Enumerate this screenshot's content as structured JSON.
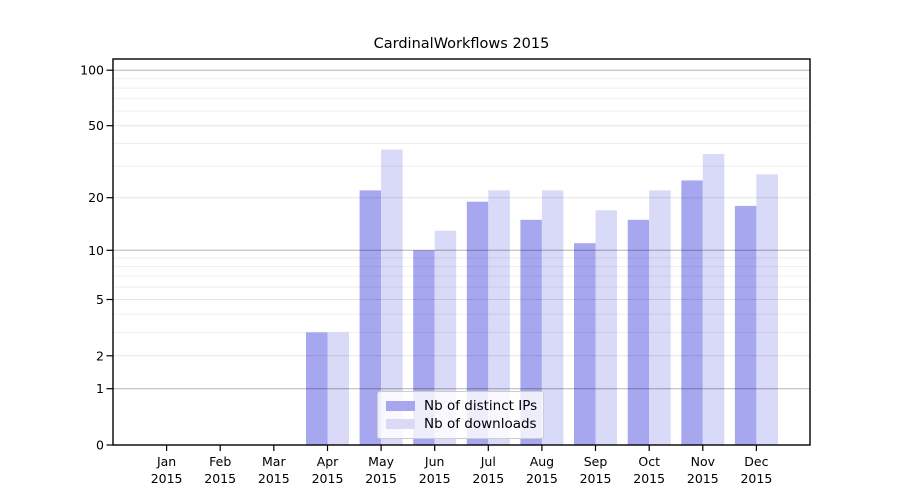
{
  "chart_data": {
    "type": "bar",
    "title": "CardinalWorkflows 2015",
    "categories": [
      "Jan",
      "Feb",
      "Mar",
      "Apr",
      "May",
      "Jun",
      "Jul",
      "Aug",
      "Sep",
      "Oct",
      "Nov",
      "Dec"
    ],
    "category_year": "2015",
    "series": [
      {
        "name": "Nb of distinct IPs",
        "color": "#a7a7f0",
        "values": [
          0,
          0,
          0,
          3,
          22,
          10,
          19,
          15,
          11,
          15,
          25,
          18
        ]
      },
      {
        "name": "Nb of downloads",
        "color": "#d9d9f8",
        "values": [
          0,
          0,
          0,
          3,
          37,
          13,
          22,
          22,
          17,
          22,
          35,
          27
        ]
      }
    ],
    "yscale": "log1p",
    "yticks": [
      0,
      1,
      2,
      5,
      10,
      20,
      50,
      100
    ],
    "minor_gridlines": [
      3,
      4,
      6,
      7,
      8,
      9,
      30,
      40,
      60,
      70,
      80,
      90
    ],
    "ylim": [
      0,
      115
    ],
    "xlabel": "",
    "ylabel": "",
    "grid": true,
    "gridlines_above_bars": true,
    "legend_position": "lower-center",
    "frame_color": "#000000",
    "major_grid_color": "rgba(0,0,0,0.30)",
    "mid_grid_color": "rgba(0,0,0,0.10)",
    "minor_grid_color": "rgba(0,0,0,0.065)"
  }
}
